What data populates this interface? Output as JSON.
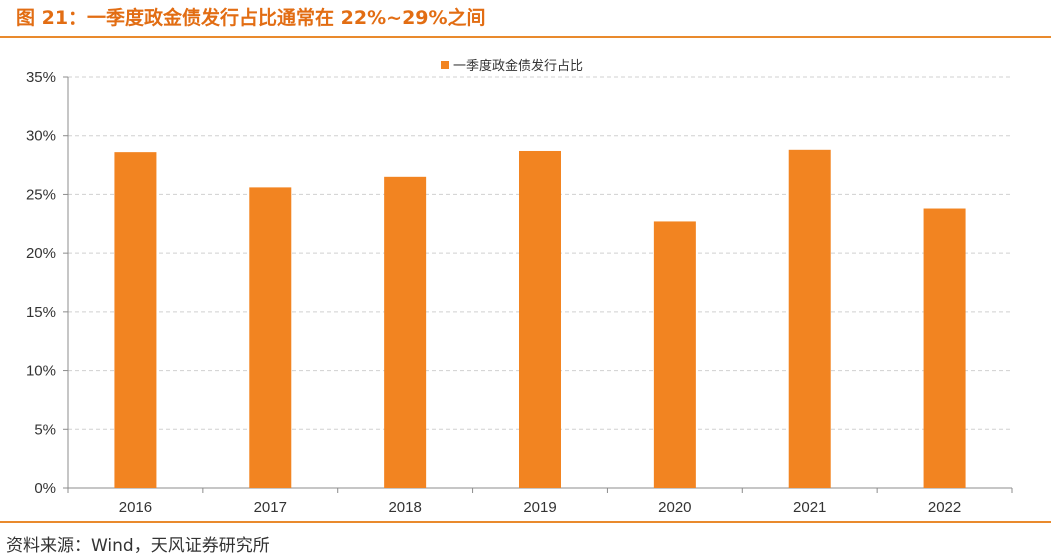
{
  "figure": {
    "title": "图 21：一季度政金债发行占比通常在 22%~29%之间",
    "source": "资料来源：Wind，天风证券研究所"
  },
  "colors": {
    "bar": "#f28421",
    "title": "#e26d13",
    "rule": "#e98a2d",
    "grid": "#d0d0d0",
    "axis": "#8c8c8c"
  },
  "chart_data": {
    "type": "bar",
    "categories": [
      "2016",
      "2017",
      "2018",
      "2019",
      "2020",
      "2021",
      "2022"
    ],
    "series": [
      {
        "name": "一季度政金债发行占比",
        "values": [
          28.6,
          25.6,
          26.5,
          28.7,
          22.7,
          28.8,
          23.8
        ]
      }
    ],
    "y_unit": "%",
    "ylim": [
      0,
      35
    ],
    "y_ticks": [
      "0%",
      "5%",
      "10%",
      "15%",
      "20%",
      "25%",
      "30%",
      "35%"
    ],
    "grid": true,
    "legend_position": "top-center"
  }
}
